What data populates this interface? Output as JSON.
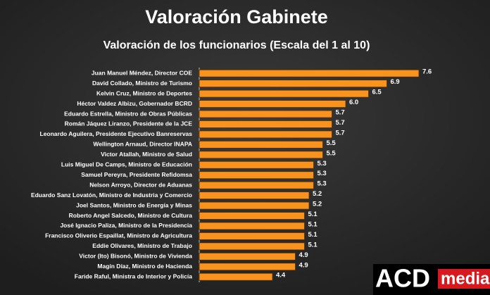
{
  "chart_data": {
    "type": "barh",
    "title": "Valoración Gabinete",
    "subtitle": "Valoración de los funcionarios (Escala del 1 al 10)",
    "categories": [
      "Juan Manuel Méndez, Director COE",
      "David Collado, Ministro de Turismo",
      "Kelvin Cruz, Ministro de Deportes",
      "Héctor Valdez Albizu, Gobernador BCRD",
      "Eduardo Estrella, Ministro de Obras Públicas",
      "Román Jáquez Liranzo, Presidente de la JCE",
      "Leonardo Aguilera, Presidente Ejecutivo Banreservas",
      "Wellington Arnaud, Director INAPA",
      "Victor Atallah, Ministro de Salud",
      "Luis Miguel De Camps, Ministro de Educación",
      "Samuel Pereyra, Presidente Refidomsa",
      "Nelson Arroyo, Director de Aduanas",
      "Eduardo Sanz Lovatón, Ministro de Industria y Comercio",
      "Joel Santos, Ministro de Energía y Minas",
      "Roberto Angel Salcedo, Ministro de Cultura",
      "José Ignacio Paliza, Ministro de la Presidencia",
      "Francisco Oliverio Espaillat, Ministro de Agricultura",
      "Eddie Olivares, Ministro de Trabajo",
      "Victor (Ito) Bisonó, Ministro de Vivienda",
      "Magín Díaz, Ministro de Hacienda",
      "Faride Raful, Ministra de Interior y Policía"
    ],
    "values": [
      7.6,
      6.9,
      6.5,
      6.0,
      5.7,
      5.7,
      5.7,
      5.5,
      5.5,
      5.3,
      5.3,
      5.3,
      5.2,
      5.2,
      5.1,
      5.1,
      5.1,
      5.1,
      4.9,
      4.9,
      4.4
    ],
    "value_labels": [
      "7.6",
      "6.9",
      "6.5",
      "6.0",
      "5.7",
      "5.7",
      "5.7",
      "5.5",
      "5.5",
      "5.3",
      "5.3",
      "5.3",
      "5.2",
      "5.2",
      "5.1",
      "5.1",
      "5.1",
      "5.1",
      "4.9",
      "4.9",
      "4.4"
    ],
    "color": "#f7931e",
    "xlim": [
      2.8,
      7.8
    ]
  },
  "logo": {
    "left": "ACD",
    "right": "media"
  }
}
